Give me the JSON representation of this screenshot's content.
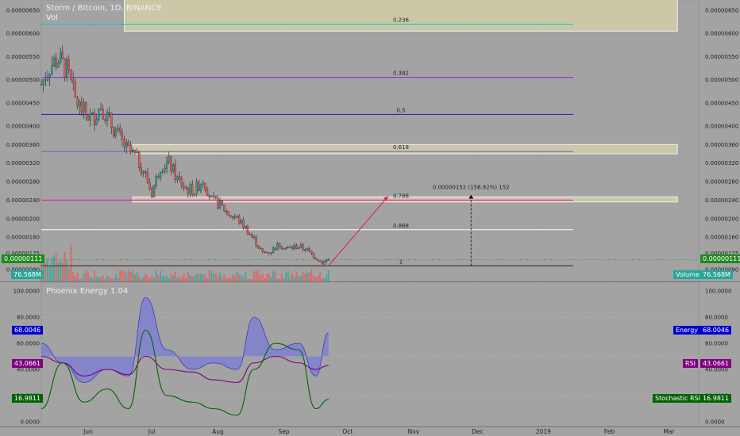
{
  "panel_title": "Storm / Bitcoin, 1D, BINANCE",
  "vol_label": "Vol",
  "indicator_title": "Phoenix Energy 1.04",
  "colors": {
    "background": "#a3a3a3",
    "up": "#26a69a",
    "down": "#ef5350",
    "energy": "#0000cc",
    "rsi": "#800080",
    "stoch": "#006400",
    "fib_box": "#fcf7b0"
  },
  "labels": {
    "price_left": "0.00000111",
    "price_right": "0.00000111",
    "volume_left": "76.568M",
    "volume_right_name": "Volume",
    "volume_right_value": "76.568M",
    "energy_left": "68.0046",
    "energy_right_name": "Energy",
    "energy_right_value": "68.0046",
    "rsi_left": "43.0661",
    "rsi_right_name": "RSI",
    "rsi_right_value": "43.0661",
    "stoch_left": "16.9811",
    "stoch_right_name": "Stochastic RSI",
    "stoch_right_value": "16.9811",
    "measure": "0.00000152 (156.92%) 152"
  },
  "chart_data": [
    {
      "type": "candlestick",
      "title": "Storm / Bitcoin, 1D, BINANCE",
      "y_ticks": [
        "0.00000650",
        "0.00000600",
        "0.00000550",
        "0.00000500",
        "0.00000450",
        "0.00000400",
        "0.00000360",
        "0.00000320",
        "0.00000280",
        "0.00000240",
        "0.00000200",
        "0.00000160",
        "0.00000125",
        "0.00000090"
      ],
      "x_ticks": [
        "Jun",
        "Jul",
        "Aug",
        "Sep",
        "Oct",
        "Nov",
        "Dec",
        "2019",
        "Feb",
        "Mar"
      ],
      "x_range": [
        "2018-05-10",
        "2019-03-15"
      ],
      "ylim": [
        9e-07,
        6.5e-06
      ],
      "fib_levels": [
        {
          "label": "0.236",
          "value": 6.2e-06
        },
        {
          "label": "0.382",
          "value": 5.05e-06
        },
        {
          "label": "0.5",
          "value": 4.25e-06
        },
        {
          "label": "0.618",
          "value": 3.45e-06
        },
        {
          "label": "0.786",
          "value": 2.4e-06
        },
        {
          "label": "0.868",
          "value": 1.76e-06
        },
        {
          "label": "1",
          "value": 9.8e-07
        }
      ],
      "close_series": [
        {
          "date": "2018-05-10",
          "value": 4.9e-06
        },
        {
          "date": "2018-05-14",
          "value": 5.3e-06
        },
        {
          "date": "2018-05-18",
          "value": 5.45e-06
        },
        {
          "date": "2018-05-22",
          "value": 5.2e-06
        },
        {
          "date": "2018-05-26",
          "value": 4.55e-06
        },
        {
          "date": "2018-05-30",
          "value": 4.3e-06
        },
        {
          "date": "2018-06-03",
          "value": 4.15e-06
        },
        {
          "date": "2018-06-07",
          "value": 4.45e-06
        },
        {
          "date": "2018-06-11",
          "value": 4.1e-06
        },
        {
          "date": "2018-06-15",
          "value": 3.8e-06
        },
        {
          "date": "2018-06-19",
          "value": 3.5e-06
        },
        {
          "date": "2018-06-23",
          "value": 3.35e-06
        },
        {
          "date": "2018-06-27",
          "value": 3.05e-06
        },
        {
          "date": "2018-07-01",
          "value": 2.55e-06
        },
        {
          "date": "2018-07-05",
          "value": 3.15e-06
        },
        {
          "date": "2018-07-09",
          "value": 3.2e-06
        },
        {
          "date": "2018-07-13",
          "value": 2.85e-06
        },
        {
          "date": "2018-07-17",
          "value": 2.65e-06
        },
        {
          "date": "2018-07-21",
          "value": 2.6e-06
        },
        {
          "date": "2018-07-25",
          "value": 2.85e-06
        },
        {
          "date": "2018-07-29",
          "value": 2.4e-06
        },
        {
          "date": "2018-08-02",
          "value": 2.3e-06
        },
        {
          "date": "2018-08-06",
          "value": 2.1e-06
        },
        {
          "date": "2018-08-10",
          "value": 2e-06
        },
        {
          "date": "2018-08-14",
          "value": 1.8e-06
        },
        {
          "date": "2018-08-18",
          "value": 1.55e-06
        },
        {
          "date": "2018-08-22",
          "value": 1.25e-06
        },
        {
          "date": "2018-08-26",
          "value": 1.3e-06
        },
        {
          "date": "2018-08-30",
          "value": 1.45e-06
        },
        {
          "date": "2018-09-03",
          "value": 1.35e-06
        },
        {
          "date": "2018-09-07",
          "value": 1.4e-06
        },
        {
          "date": "2018-09-11",
          "value": 1.35e-06
        },
        {
          "date": "2018-09-15",
          "value": 1.2e-06
        },
        {
          "date": "2018-09-19",
          "value": 1.05e-06
        },
        {
          "date": "2018-09-22",
          "value": 1.11e-06
        }
      ],
      "volume": {
        "last": 76568000
      }
    },
    {
      "type": "line",
      "title": "Phoenix Energy 1.04",
      "ylim": [
        0,
        100
      ],
      "y_ticks": [
        "100.0000",
        "80.0000",
        "60.0000",
        "40.0000",
        "20.0000",
        "0.0000"
      ],
      "series": [
        {
          "name": "Energy",
          "last": 68.0046,
          "values": [
            {
              "date": "2018-05-10",
              "value": 60
            },
            {
              "date": "2018-05-20",
              "value": 45
            },
            {
              "date": "2018-05-30",
              "value": 30
            },
            {
              "date": "2018-06-10",
              "value": 40
            },
            {
              "date": "2018-06-20",
              "value": 35
            },
            {
              "date": "2018-06-28",
              "value": 95
            },
            {
              "date": "2018-07-08",
              "value": 55
            },
            {
              "date": "2018-07-20",
              "value": 40
            },
            {
              "date": "2018-07-30",
              "value": 45
            },
            {
              "date": "2018-08-10",
              "value": 40
            },
            {
              "date": "2018-08-18",
              "value": 80
            },
            {
              "date": "2018-08-28",
              "value": 55
            },
            {
              "date": "2018-09-08",
              "value": 60
            },
            {
              "date": "2018-09-16",
              "value": 35
            },
            {
              "date": "2018-09-22",
              "value": 68
            }
          ]
        },
        {
          "name": "RSI",
          "last": 43.0661,
          "values": [
            {
              "date": "2018-05-10",
              "value": 50
            },
            {
              "date": "2018-05-20",
              "value": 45
            },
            {
              "date": "2018-05-30",
              "value": 35
            },
            {
              "date": "2018-06-10",
              "value": 40
            },
            {
              "date": "2018-06-20",
              "value": 36
            },
            {
              "date": "2018-06-28",
              "value": 50
            },
            {
              "date": "2018-07-08",
              "value": 40
            },
            {
              "date": "2018-07-20",
              "value": 38
            },
            {
              "date": "2018-07-30",
              "value": 32
            },
            {
              "date": "2018-08-10",
              "value": 30
            },
            {
              "date": "2018-08-18",
              "value": 45
            },
            {
              "date": "2018-08-28",
              "value": 50
            },
            {
              "date": "2018-09-08",
              "value": 45
            },
            {
              "date": "2018-09-16",
              "value": 40
            },
            {
              "date": "2018-09-22",
              "value": 43
            }
          ]
        },
        {
          "name": "Stochastic RSI",
          "last": 16.9811,
          "values": [
            {
              "date": "2018-05-10",
              "value": 10
            },
            {
              "date": "2018-05-20",
              "value": 45
            },
            {
              "date": "2018-05-30",
              "value": 15
            },
            {
              "date": "2018-06-10",
              "value": 25
            },
            {
              "date": "2018-06-20",
              "value": 10
            },
            {
              "date": "2018-06-28",
              "value": 70
            },
            {
              "date": "2018-07-08",
              "value": 20
            },
            {
              "date": "2018-07-20",
              "value": 15
            },
            {
              "date": "2018-07-30",
              "value": 10
            },
            {
              "date": "2018-08-10",
              "value": 5
            },
            {
              "date": "2018-08-18",
              "value": 40
            },
            {
              "date": "2018-08-28",
              "value": 60
            },
            {
              "date": "2018-09-08",
              "value": 55
            },
            {
              "date": "2018-09-16",
              "value": 10
            },
            {
              "date": "2018-09-22",
              "value": 17
            }
          ]
        }
      ]
    }
  ]
}
